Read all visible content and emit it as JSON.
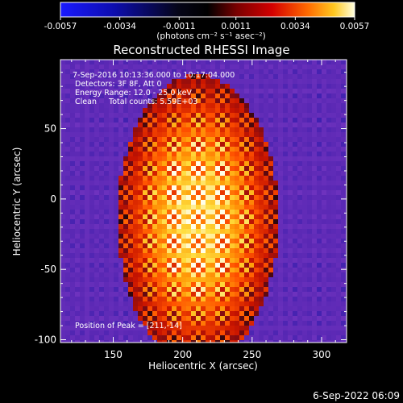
{
  "chart_data": {
    "type": "heatmap",
    "title": "Reconstructed RHESSI Image",
    "xlabel": "Heliocentric X (arcsec)",
    "ylabel": "Heliocentric Y (arcsec)",
    "xlim": [
      112,
      318
    ],
    "ylim": [
      -102,
      99
    ],
    "x_ticks": [
      150,
      200,
      250,
      300
    ],
    "y_ticks": [
      -100,
      -50,
      0,
      50
    ],
    "colorbar": {
      "ticks": [
        "-0.0057",
        "-0.0034",
        "-0.0011",
        "0.0011",
        "0.0034",
        "0.0057"
      ],
      "range": [
        -0.0057,
        0.0057
      ],
      "units": "(photons cm⁻² s⁻¹ asec⁻²)"
    },
    "annotations": [
      " 7-Sep-2016 10:13:36.000 to 10:17:04.000",
      "Detectors: 3F 8F, Att 0",
      "Energy Range: 12.0 - 25.0 keV",
      "Clean     Total counts: 5.59E+03"
    ],
    "peak_label": "Position of Peak = [211,-14]",
    "peak": [
      211,
      -14
    ],
    "colors": {
      "negative": "#2230ff",
      "mid": "#000000",
      "low": "#6a2eb6",
      "hot": "#ff3a00",
      "peak": "#ffffff"
    }
  },
  "footer": {
    "timestamp": "6-Sep-2022 06:09"
  }
}
